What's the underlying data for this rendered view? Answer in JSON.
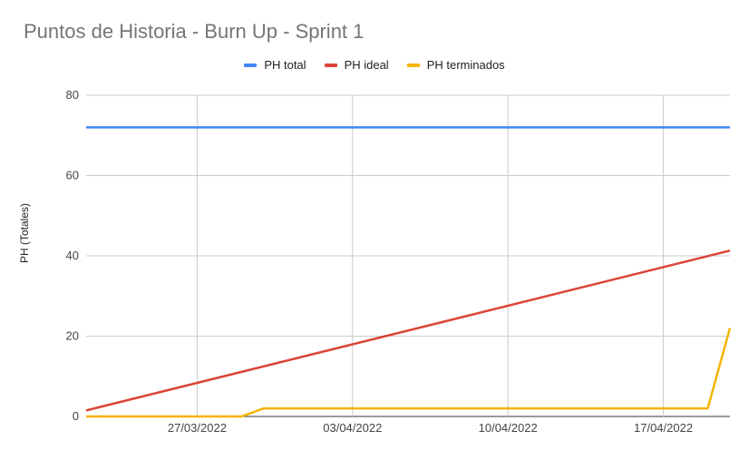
{
  "chart_data": {
    "type": "line",
    "title": "Puntos de Historia - Burn Up - Sprint 1",
    "ylabel": "PH (Totales)",
    "xlabel": "",
    "ylim": [
      0,
      80
    ],
    "yticks": [
      0,
      20,
      40,
      60,
      80
    ],
    "x_range": [
      "2022-03-22",
      "2022-04-20"
    ],
    "xticks": [
      {
        "date": "2022-03-27",
        "label": "27/03/2022"
      },
      {
        "date": "2022-04-03",
        "label": "03/04/2022"
      },
      {
        "date": "2022-04-10",
        "label": "10/04/2022"
      },
      {
        "date": "2022-04-17",
        "label": "17/04/2022"
      }
    ],
    "grid": true,
    "legend_position": "top",
    "series": [
      {
        "name": "PH total",
        "color": "#4285f4",
        "points": [
          [
            "2022-03-22",
            72
          ],
          [
            "2022-04-20",
            72
          ]
        ]
      },
      {
        "name": "PH ideal",
        "color": "#db4437",
        "points": [
          [
            "2022-03-22",
            1.5
          ],
          [
            "2022-04-20",
            41.3
          ]
        ]
      },
      {
        "name": "PH terminados",
        "color": "#f4b400",
        "points": [
          [
            "2022-03-22",
            0
          ],
          [
            "2022-03-29",
            0
          ],
          [
            "2022-03-30",
            2
          ],
          [
            "2022-04-19",
            2
          ],
          [
            "2022-04-20",
            22
          ]
        ]
      }
    ]
  }
}
